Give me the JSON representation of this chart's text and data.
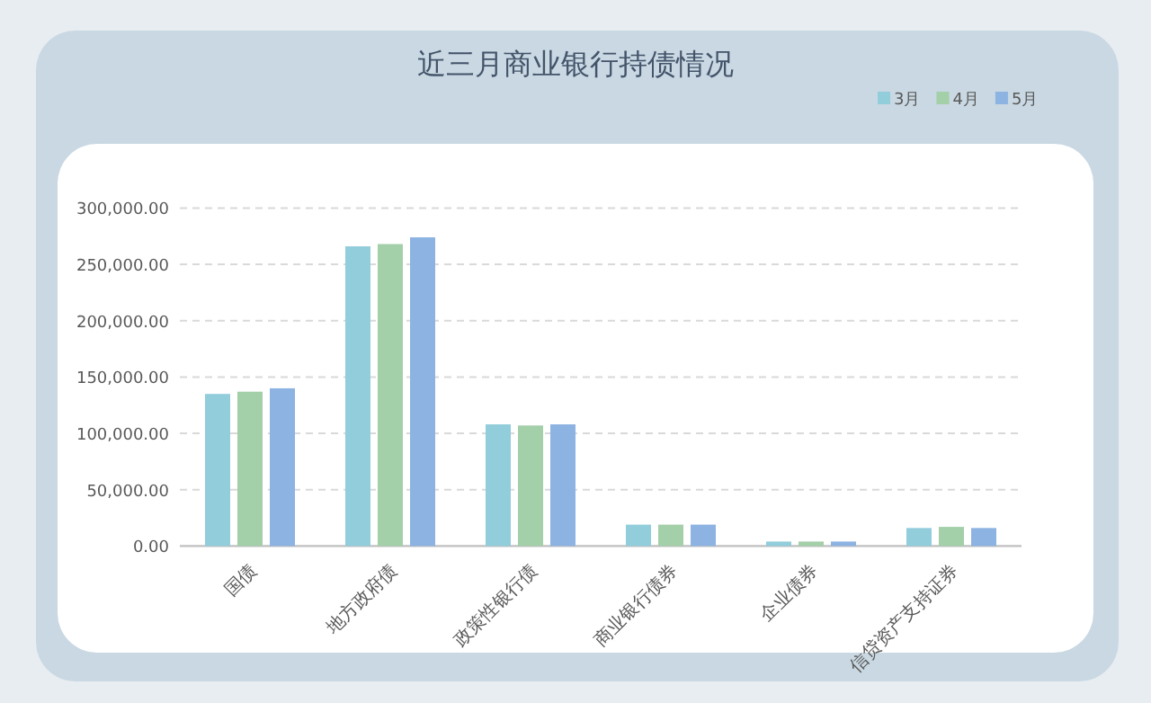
{
  "chart_data": {
    "type": "bar",
    "title": "近三月商业银行持债情况",
    "categories": [
      "国债",
      "地方政府债",
      "政策性银行债",
      "商业银行债券",
      "企业债券",
      "信贷资产支持证券"
    ],
    "series": [
      {
        "name": "3月",
        "color": "#92cddc",
        "values": [
          135000,
          266000,
          108000,
          19000,
          4000,
          16000
        ]
      },
      {
        "name": "4月",
        "color": "#a3cfa9",
        "values": [
          137000,
          268000,
          107000,
          19000,
          4000,
          17000
        ]
      },
      {
        "name": "5月",
        "color": "#8db3e2",
        "values": [
          140000,
          274000,
          108000,
          19000,
          4000,
          16000
        ]
      }
    ],
    "ylim": [
      0,
      300000
    ],
    "yticks": [
      {
        "value": 0,
        "label": "0.00"
      },
      {
        "value": 50000,
        "label": "50,000.00"
      },
      {
        "value": 100000,
        "label": "100,000.00"
      },
      {
        "value": 150000,
        "label": "150,000.00"
      },
      {
        "value": 200000,
        "label": "200,000.00"
      },
      {
        "value": 250000,
        "label": "250,000.00"
      },
      {
        "value": 300000,
        "label": "300,000.00"
      }
    ],
    "grid": "y",
    "legend": "top right"
  }
}
